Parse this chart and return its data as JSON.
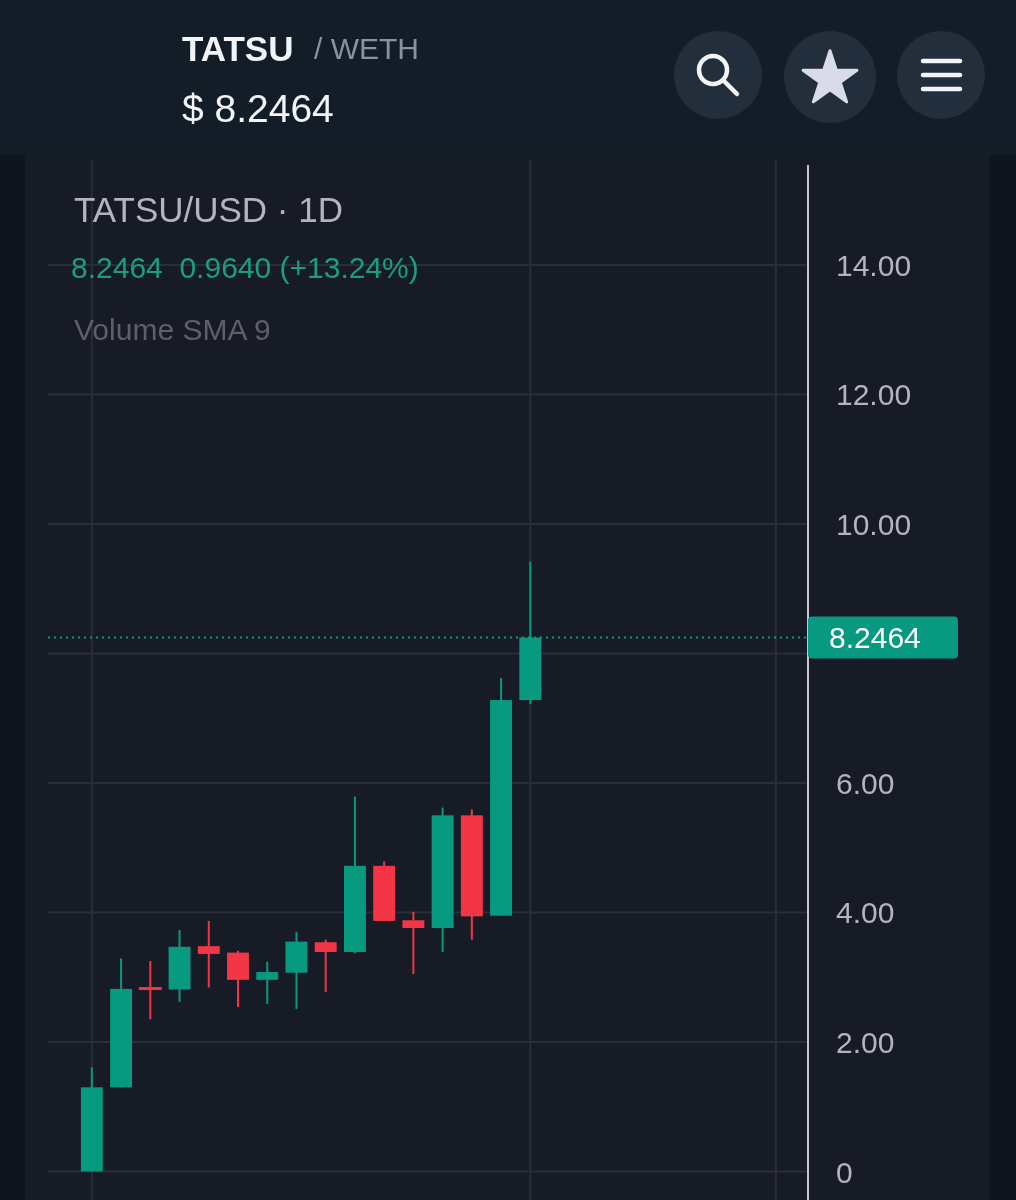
{
  "chart_data": {
    "type": "candlestick",
    "title": "TATSU/USD · 1D",
    "subtitle": "8.2464  0.9640 (+13.24%)",
    "annotations": [
      "TATSU",
      "/ WETH",
      "$ 8.2464",
      "Volume SMA 9"
    ],
    "categories": [
      null,
      null,
      null,
      null,
      null,
      null,
      null,
      null,
      null,
      null,
      null,
      null,
      null,
      null,
      null,
      null,
      null,
      null,
      null,
      null,
      null,
      null,
      null,
      null,
      null,
      null
    ],
    "ohlc": [
      null,
      [
        0,
        1.61,
        0,
        1.3
      ],
      [
        1.3,
        3.29,
        1.3,
        2.82
      ],
      [
        2.84,
        3.25,
        2.35,
        2.81
      ],
      [
        2.81,
        3.73,
        2.62,
        3.47
      ],
      [
        3.48,
        3.87,
        2.84,
        3.36
      ],
      [
        3.38,
        3.41,
        2.54,
        2.96
      ],
      [
        2.96,
        3.24,
        2.59,
        3.08
      ],
      [
        3.07,
        3.7,
        2.51,
        3.55
      ],
      [
        3.54,
        3.58,
        2.77,
        3.39
      ],
      [
        3.39,
        5.79,
        3.37,
        4.72
      ],
      [
        4.72,
        4.79,
        3.87,
        3.87
      ],
      [
        3.88,
        4.01,
        3.05,
        3.76
      ],
      [
        3.76,
        5.62,
        3.39,
        5.5
      ],
      [
        5.5,
        5.59,
        3.58,
        3.94
      ],
      [
        3.95,
        7.62,
        3.95,
        7.28
      ],
      [
        7.28,
        9.42,
        7.22,
        8.2464
      ],
      null,
      null,
      null,
      null,
      null,
      null,
      null,
      null,
      null
    ],
    "colors": [
      null,
      "#089981",
      "#089981",
      "#f23645",
      "#089981",
      "#f23645",
      "#f23645",
      "#089981",
      "#089981",
      "#f23645",
      "#089981",
      "#f23645",
      "#f23645",
      "#089981",
      "#f23645",
      "#089981",
      "#089981",
      null,
      null,
      null,
      null,
      null,
      null,
      null,
      null,
      null
    ],
    "ylim": [
      -0.44,
      15.62
    ],
    "yticks": [
      {
        "value": 0,
        "label": "0"
      },
      {
        "value": 2,
        "label": "2.00"
      },
      {
        "value": 4,
        "label": "4.00"
      },
      {
        "value": 6,
        "label": "6.00"
      },
      {
        "value": 8,
        "label": null
      },
      {
        "value": 10,
        "label": "10.00"
      },
      {
        "value": 12,
        "label": "12.00"
      },
      {
        "value": 14,
        "label": "14.00"
      }
    ],
    "grid": true,
    "tick_labels": "y",
    "ref_lines": [
      {
        "axis": "y",
        "value": 8.2464,
        "label": "8.2464",
        "color": "#089981",
        "line_style": "dotted"
      }
    ]
  }
}
